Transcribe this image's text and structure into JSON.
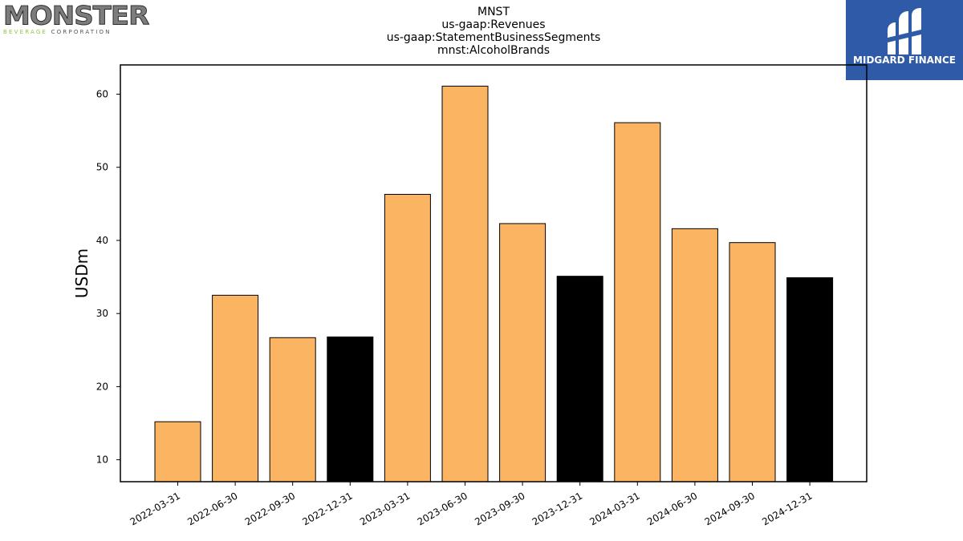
{
  "logos": {
    "left_word": "MONSTER",
    "left_sub_a": "BEVERAGE",
    "left_sub_b": "CORPORATION",
    "right_brand": "MIDGARD FINANCE"
  },
  "chart_data": {
    "type": "bar",
    "title_lines": [
      "MNST",
      "us-gaap:Revenues",
      "us-gaap:StatementBusinessSegments",
      "mnst:AlcoholBrands"
    ],
    "xlabel": "",
    "ylabel": "USDm",
    "ylim": [
      7,
      64
    ],
    "yticks": [
      10,
      20,
      30,
      40,
      50,
      60
    ],
    "grid": false,
    "legend": "none",
    "categories": [
      "2022-03-31",
      "2022-06-30",
      "2022-09-30",
      "2022-12-31",
      "2023-03-31",
      "2023-06-30",
      "2023-09-30",
      "2023-12-31",
      "2024-03-31",
      "2024-06-30",
      "2024-09-30",
      "2024-12-31"
    ],
    "values": [
      15.2,
      32.5,
      26.7,
      26.8,
      46.3,
      61.1,
      42.3,
      35.1,
      56.1,
      41.6,
      39.7,
      34.9
    ],
    "colors": [
      "#fbb462",
      "#fbb462",
      "#fbb462",
      "#000000",
      "#fbb462",
      "#fbb462",
      "#fbb462",
      "#000000",
      "#fbb462",
      "#fbb462",
      "#fbb462",
      "#000000"
    ]
  }
}
